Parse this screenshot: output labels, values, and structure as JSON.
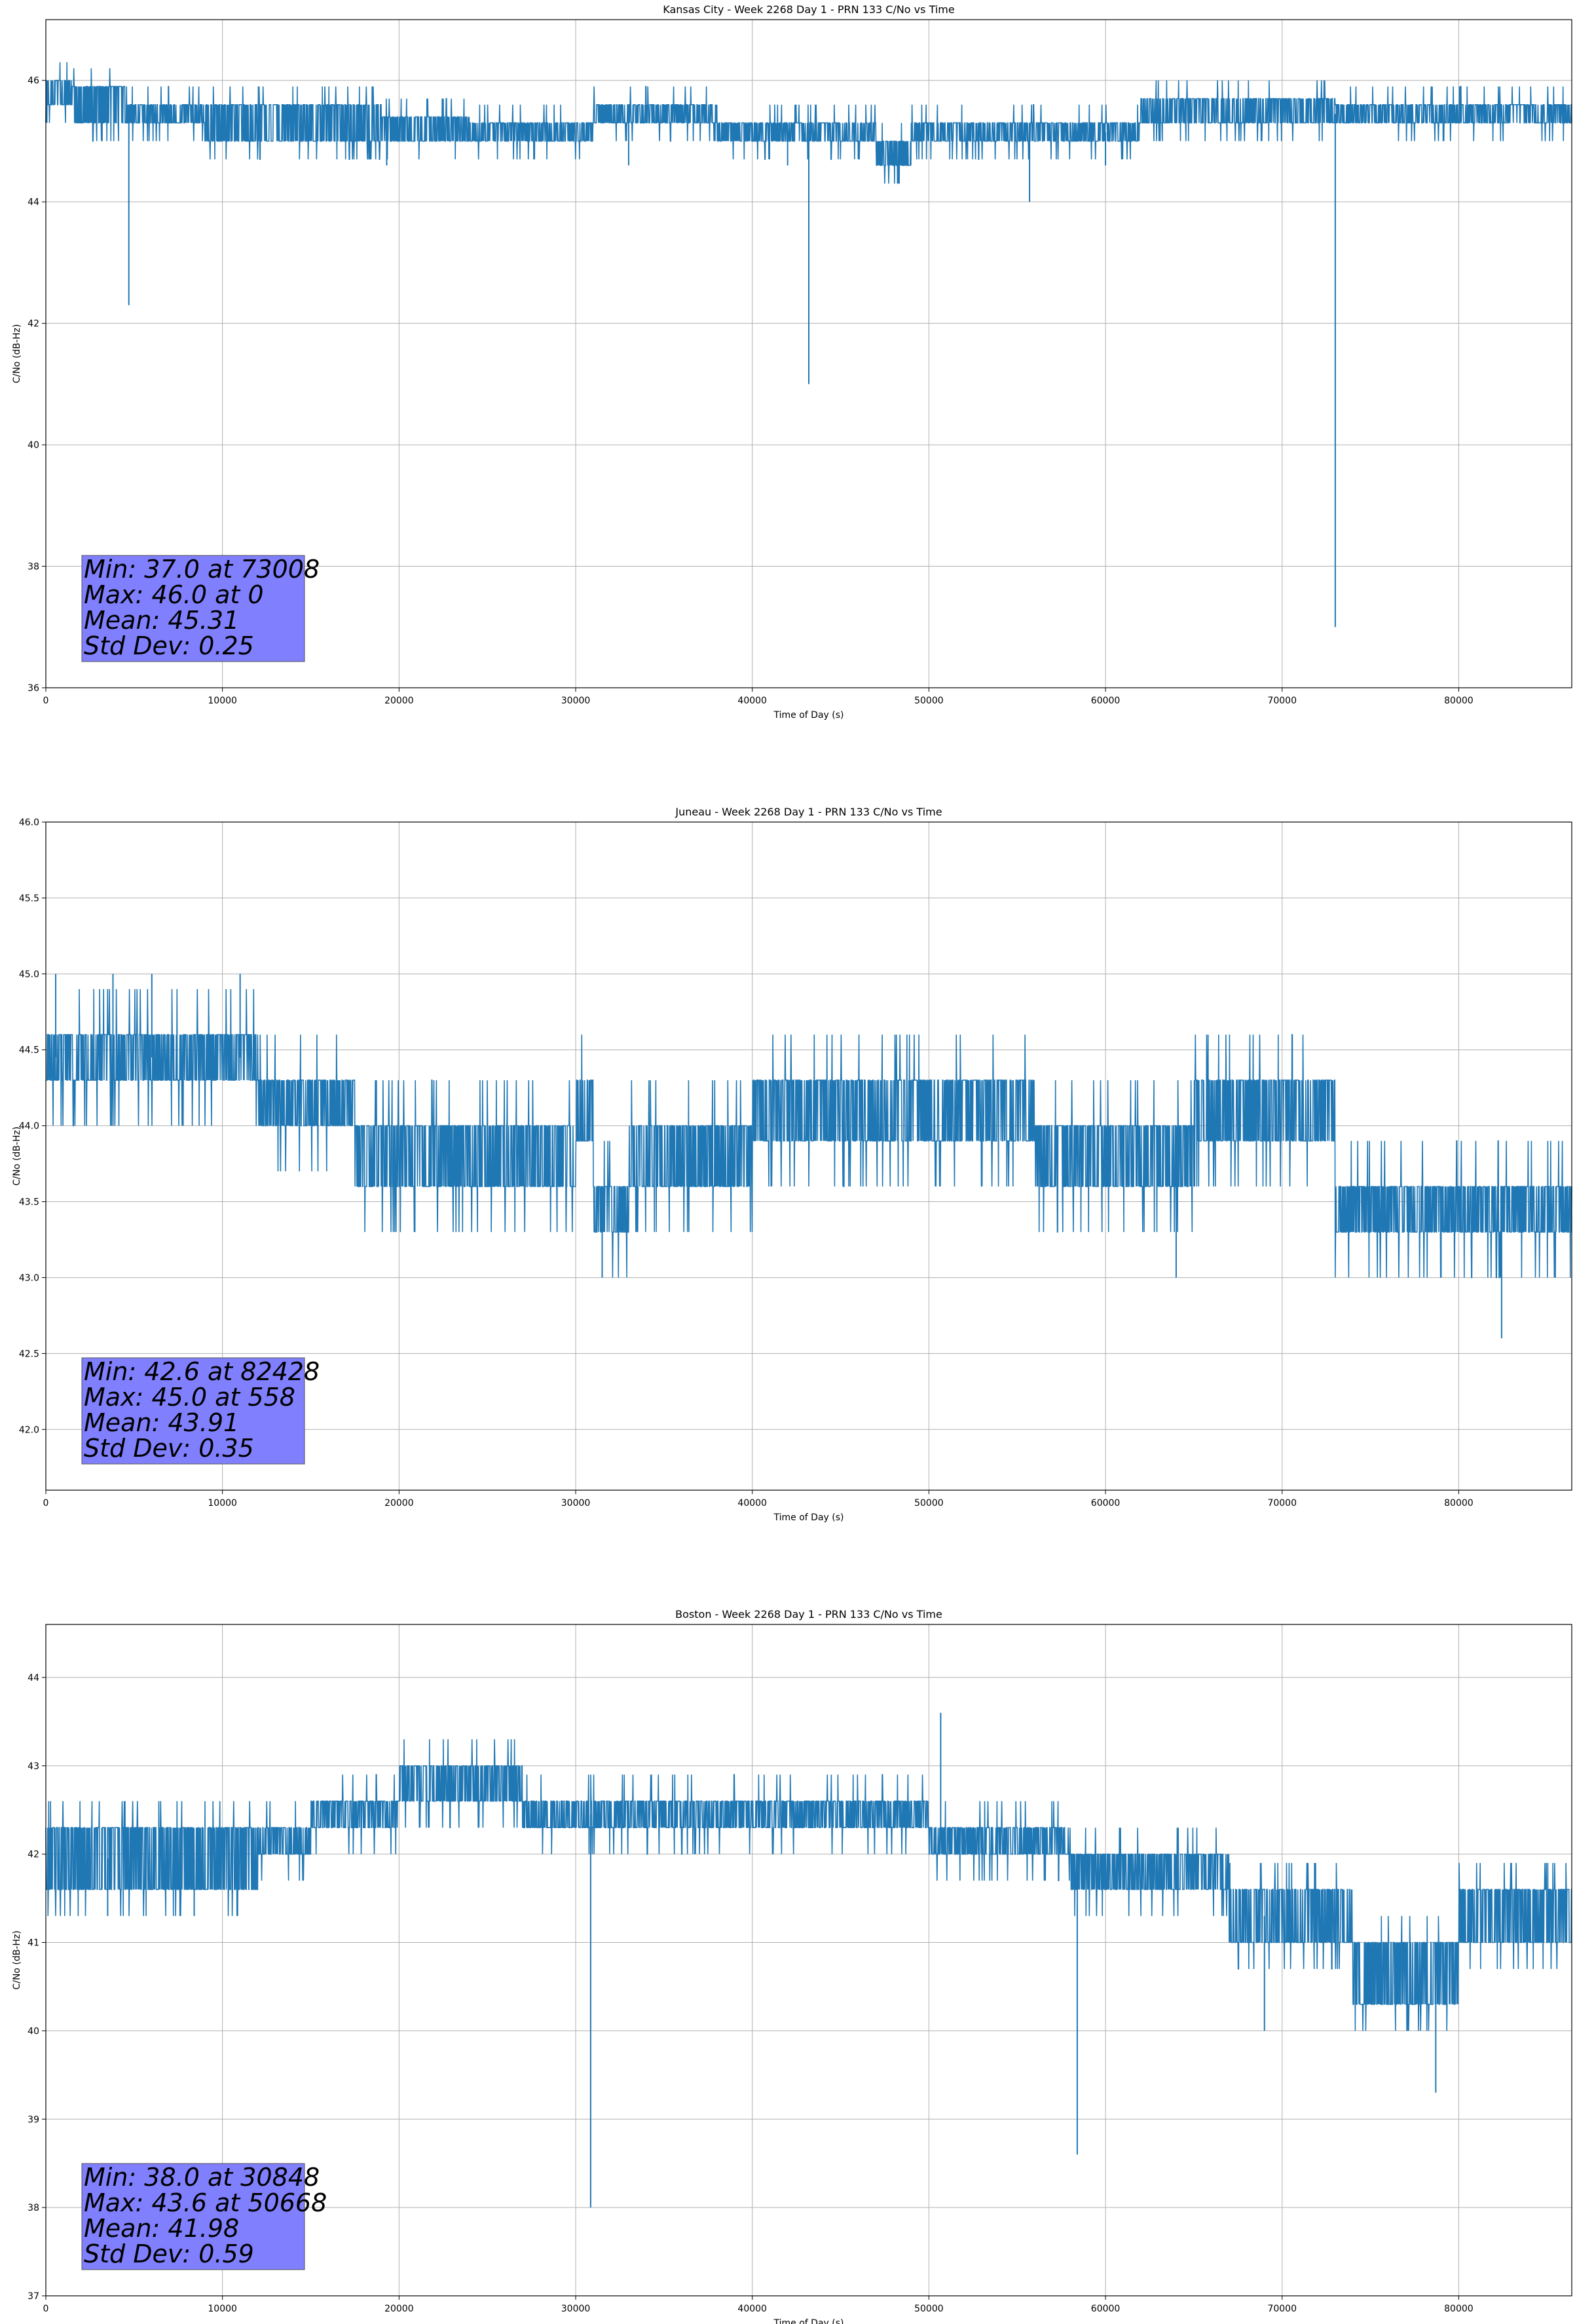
{
  "chart_data": [
    {
      "type": "line",
      "title": "Kansas City - Week 2268 Day 1 - PRN 133 C/No vs Time",
      "xlabel": "Time of Day (s)",
      "ylabel": "C/No (dB-Hz)",
      "xlim": [
        0,
        86400
      ],
      "ylim": [
        36,
        47
      ],
      "xticks": [
        0,
        10000,
        20000,
        30000,
        40000,
        50000,
        60000,
        70000,
        80000
      ],
      "yticks": [
        36,
        38,
        40,
        42,
        44,
        46
      ],
      "ytick_decimals": 0,
      "grid": true,
      "color": "#1f77b4",
      "band_segments": [
        [
          0,
          1500,
          45.6,
          46.0
        ],
        [
          1500,
          4600,
          45.3,
          45.9
        ],
        [
          4600,
          9000,
          45.3,
          45.6
        ],
        [
          9000,
          19000,
          45.0,
          45.6
        ],
        [
          19000,
          24000,
          45.0,
          45.4
        ],
        [
          24000,
          31000,
          45.0,
          45.3
        ],
        [
          31000,
          38000,
          45.3,
          45.6
        ],
        [
          38000,
          47000,
          45.0,
          45.3
        ],
        [
          47000,
          49000,
          44.6,
          45.0
        ],
        [
          49000,
          62000,
          45.0,
          45.3
        ],
        [
          62000,
          73000,
          45.3,
          45.7
        ],
        [
          73000,
          86400,
          45.3,
          45.6
        ]
      ],
      "spikes": [
        [
          4700,
          42.3
        ],
        [
          43200,
          41.0
        ],
        [
          55700,
          44.0
        ],
        [
          73008,
          37.0
        ],
        [
          33000,
          44.6
        ],
        [
          19300,
          44.6
        ],
        [
          42000,
          44.6
        ],
        [
          60000,
          44.6
        ]
      ],
      "stats": {
        "min_label": "Min: 37.0 at 73008",
        "max_label": "Max: 46.0 at 0",
        "mean_label": "Mean: 45.31",
        "std_label": "Std Dev: 0.25"
      }
    },
    {
      "type": "line",
      "title": "Juneau - Week 2268 Day 1 - PRN 133 C/No vs Time",
      "xlabel": "Time of Day (s)",
      "ylabel": "C/No (dB-Hz)",
      "xlim": [
        0,
        86400
      ],
      "ylim": [
        41.6,
        46.0
      ],
      "xticks": [
        0,
        10000,
        20000,
        30000,
        40000,
        50000,
        60000,
        70000,
        80000
      ],
      "yticks": [
        42.0,
        42.5,
        43.0,
        43.5,
        44.0,
        44.5,
        45.0,
        45.5,
        46.0
      ],
      "ytick_decimals": 1,
      "grid": true,
      "color": "#1f77b4",
      "band_segments": [
        [
          0,
          12000,
          44.3,
          44.6
        ],
        [
          12000,
          17500,
          44.0,
          44.3
        ],
        [
          17500,
          30000,
          43.6,
          44.0
        ],
        [
          30000,
          31000,
          43.9,
          44.3
        ],
        [
          31000,
          33000,
          43.3,
          43.6
        ],
        [
          33000,
          40000,
          43.6,
          44.0
        ],
        [
          40000,
          56000,
          43.9,
          44.3
        ],
        [
          56000,
          65000,
          43.6,
          44.0
        ],
        [
          65000,
          73000,
          43.9,
          44.3
        ],
        [
          73000,
          86400,
          43.3,
          43.6
        ]
      ],
      "spikes": [
        [
          558,
          45.0
        ],
        [
          3800,
          45.0
        ],
        [
          6000,
          45.0
        ],
        [
          11000,
          45.0
        ],
        [
          31500,
          43.0
        ],
        [
          82428,
          42.6
        ],
        [
          64000,
          43.0
        ],
        [
          79000,
          43.0
        ]
      ],
      "stats": {
        "min_label": "Min: 42.6 at 82428",
        "max_label": "Max: 45.0 at 558",
        "mean_label": "Mean: 43.91",
        "std_label": "Std Dev: 0.35"
      }
    },
    {
      "type": "line",
      "title": "Boston - Week 2268 Day 1 - PRN 133 C/No vs Time",
      "xlabel": "Time of Day (s)",
      "ylabel": "C/No (dB-Hz)",
      "xlim": [
        0,
        86400
      ],
      "ylim": [
        37,
        44.6
      ],
      "xticks": [
        0,
        10000,
        20000,
        30000,
        40000,
        50000,
        60000,
        70000,
        80000
      ],
      "yticks": [
        37,
        38,
        39,
        40,
        41,
        42,
        43,
        44
      ],
      "ytick_decimals": 0,
      "grid": true,
      "color": "#1f77b4",
      "band_segments": [
        [
          0,
          12000,
          41.6,
          42.3
        ],
        [
          12000,
          15000,
          42.0,
          42.3
        ],
        [
          15000,
          20000,
          42.3,
          42.6
        ],
        [
          20000,
          27000,
          42.6,
          43.0
        ],
        [
          27000,
          50000,
          42.3,
          42.6
        ],
        [
          50000,
          58000,
          42.0,
          42.3
        ],
        [
          58000,
          67000,
          41.6,
          42.0
        ],
        [
          67000,
          74000,
          41.0,
          41.6
        ],
        [
          74000,
          80000,
          40.3,
          41.0
        ],
        [
          80000,
          86400,
          41.0,
          41.6
        ]
      ],
      "spikes": [
        [
          30848,
          38.0
        ],
        [
          50668,
          43.6
        ],
        [
          58400,
          38.6
        ],
        [
          78700,
          39.3
        ],
        [
          69000,
          40.0
        ],
        [
          3500,
          41.3
        ],
        [
          8400,
          41.3
        ]
      ],
      "stats": {
        "min_label": "Min: 38.0 at 30848",
        "max_label": "Max: 43.6 at 50668",
        "mean_label": "Mean: 41.98",
        "std_label": "Std Dev: 0.59"
      }
    }
  ]
}
